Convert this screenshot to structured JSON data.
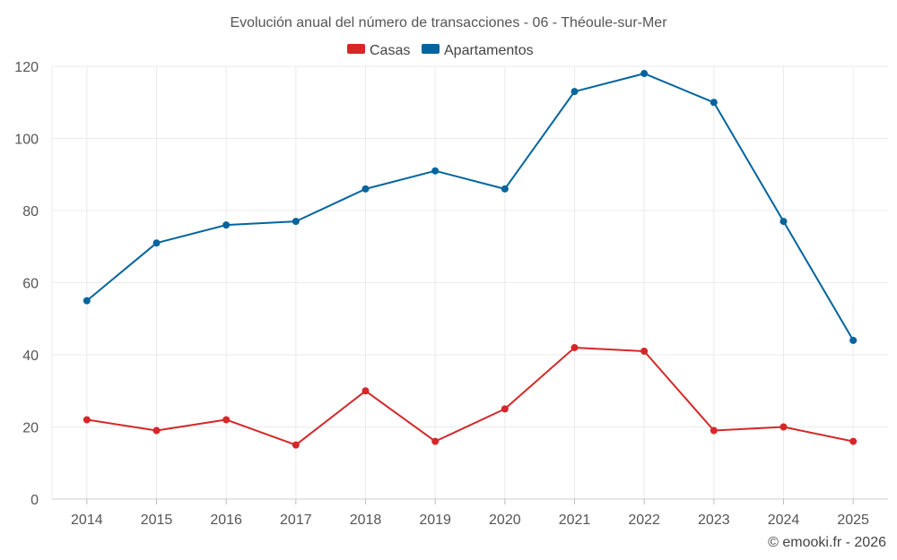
{
  "chart_data": {
    "type": "line",
    "title": "Evolución anual del número de transacciones - 06 - Théoule-sur-Mer",
    "categories": [
      "2014",
      "2015",
      "2016",
      "2017",
      "2018",
      "2019",
      "2020",
      "2021",
      "2022",
      "2023",
      "2024",
      "2025"
    ],
    "series": [
      {
        "name": "Casas",
        "color": "#d62728",
        "values": [
          22,
          19,
          22,
          15,
          30,
          16,
          25,
          42,
          41,
          19,
          20,
          16
        ]
      },
      {
        "name": "Apartamentos",
        "color": "#00649e",
        "values": [
          55,
          71,
          76,
          77,
          86,
          91,
          86,
          113,
          118,
          110,
          77,
          44
        ]
      }
    ],
    "ylim": [
      0,
      120
    ],
    "yticks": [
      0,
      20,
      40,
      60,
      80,
      100,
      120
    ],
    "grid": true,
    "legend": "top-center"
  },
  "credit": "© emooki.fr - 2026"
}
